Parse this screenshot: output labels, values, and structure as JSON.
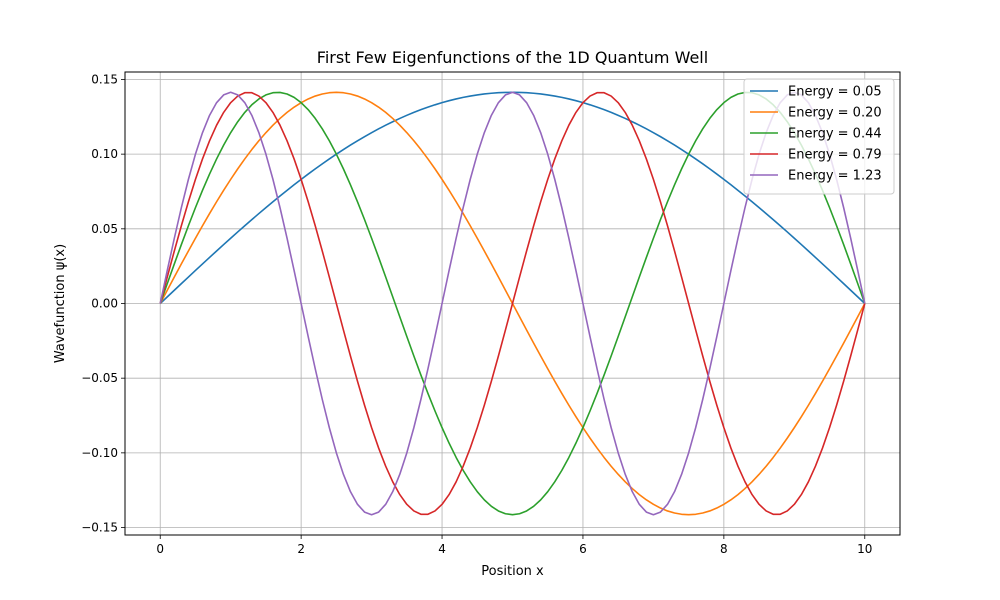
{
  "chart_data": {
    "type": "line",
    "title": "First Few Eigenfunctions of the 1D Quantum Well",
    "xlabel": "Position x",
    "ylabel": "Wavefunction ψ(x)",
    "xlim": [
      -0.5,
      10.5
    ],
    "ylim": [
      -0.155,
      0.155
    ],
    "xticks": [
      0,
      2,
      4,
      6,
      8,
      10
    ],
    "xtick_labels": [
      "0",
      "2",
      "4",
      "6",
      "8",
      "10"
    ],
    "yticks": [
      -0.15,
      -0.1,
      -0.05,
      0.0,
      0.05,
      0.1,
      0.15
    ],
    "ytick_labels": [
      "−0.15",
      "−0.10",
      "−0.05",
      "0.00",
      "0.05",
      "0.10",
      "0.15"
    ],
    "grid": true,
    "legend_position": "top-right",
    "x_range": [
      0,
      10
    ],
    "amplitude": 0.1414,
    "series": [
      {
        "name": "Energy = 0.05",
        "mode": 1,
        "color": "#1f77b4"
      },
      {
        "name": "Energy = 0.20",
        "mode": 2,
        "color": "#ff7f0e"
      },
      {
        "name": "Energy = 0.44",
        "mode": 3,
        "color": "#2ca02c"
      },
      {
        "name": "Energy = 0.79",
        "mode": 4,
        "color": "#d62728"
      },
      {
        "name": "Energy = 1.23",
        "mode": 5,
        "color": "#9467bd"
      }
    ]
  }
}
